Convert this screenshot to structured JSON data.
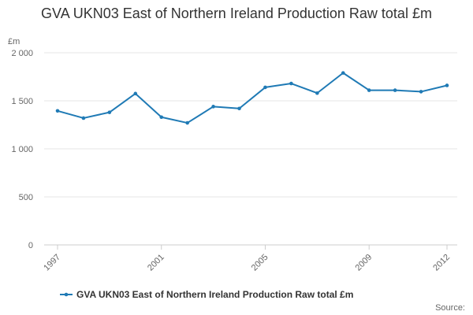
{
  "chart_data": {
    "type": "line",
    "title": "GVA UKN03 East of Northern Ireland Production Raw total £m",
    "ylabel": "£m",
    "xlabel": "",
    "ylim": [
      0,
      2000
    ],
    "yticks": [
      {
        "value": 0,
        "label": "0"
      },
      {
        "value": 500,
        "label": "500"
      },
      {
        "value": 1000,
        "label": "1 000"
      },
      {
        "value": 1500,
        "label": "1 500"
      },
      {
        "value": 2000,
        "label": "2 000"
      }
    ],
    "xticks": [
      "1997",
      "2001",
      "2005",
      "2009",
      "2012"
    ],
    "x": [
      "1997",
      "1998",
      "1999",
      "2000",
      "2001",
      "2002",
      "2003",
      "2004",
      "2005",
      "2006",
      "2007",
      "2008",
      "2009",
      "2010",
      "2011",
      "2012"
    ],
    "series": [
      {
        "name": "GVA UKN03 East of Northern Ireland Production Raw total £m",
        "color": "#1f7ab5",
        "values": [
          1395,
          1320,
          1380,
          1575,
          1330,
          1270,
          1440,
          1420,
          1640,
          1680,
          1580,
          1790,
          1610,
          1610,
          1595,
          1660
        ]
      }
    ],
    "grid": true,
    "legend_position": "bottom",
    "source_label": "Source:"
  }
}
